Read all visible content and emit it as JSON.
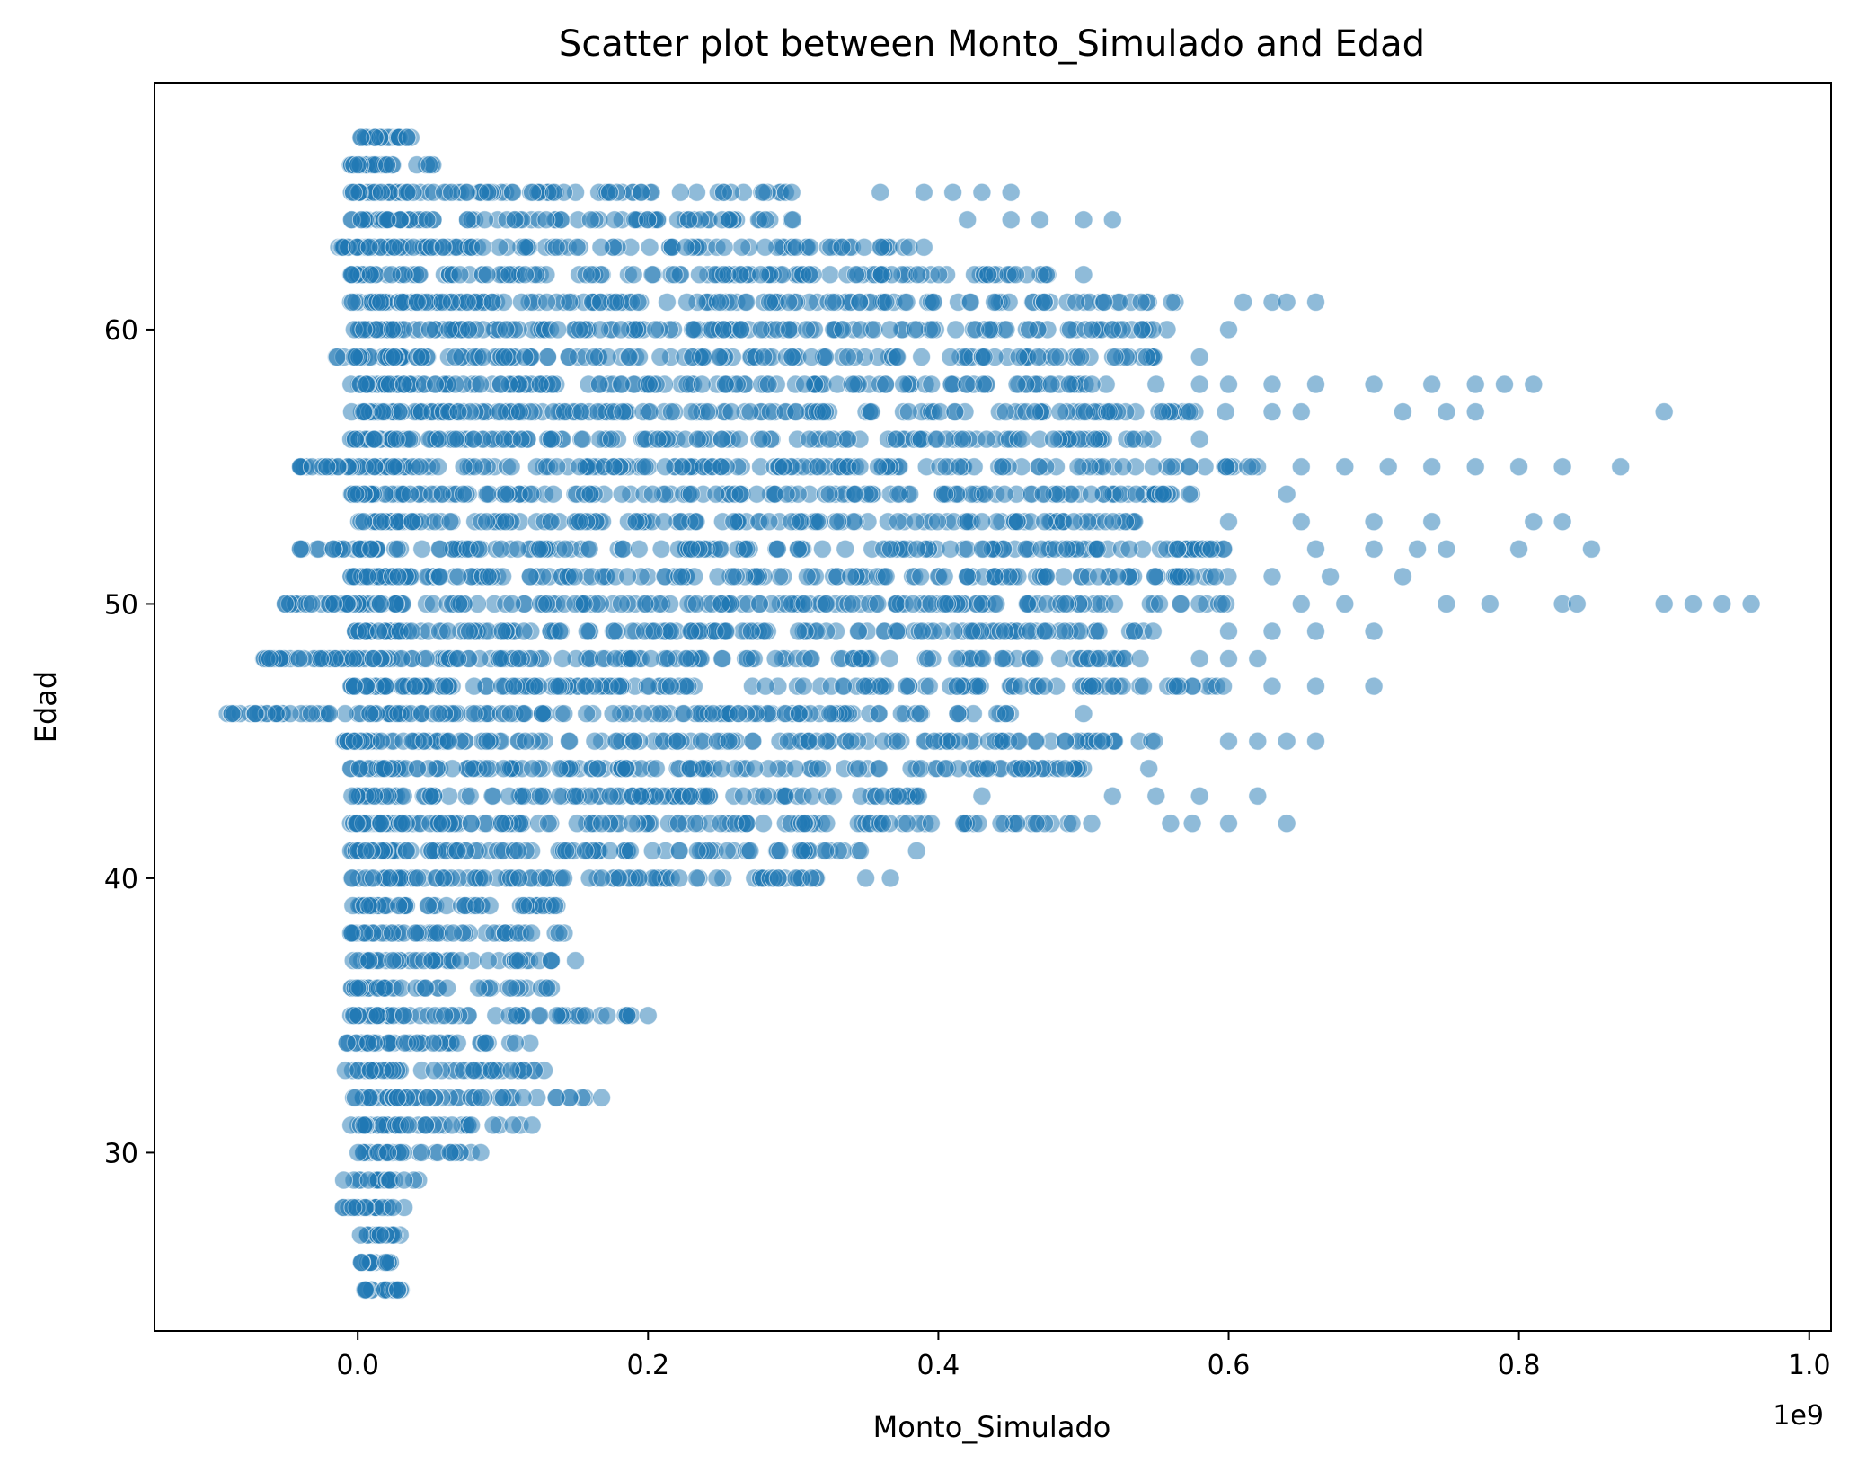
{
  "chart_data": {
    "type": "scatter",
    "title": "Scatter plot between Monto_Simulado and Edad",
    "xlabel": "Monto_Simulado",
    "ylabel": "Edad",
    "x_offset_label": "1e9",
    "xlim": [
      -0.14,
      1.015
    ],
    "ylim": [
      23.5,
      69
    ],
    "x_ticks": [
      0.0,
      0.2,
      0.4,
      0.6,
      0.8,
      1.0
    ],
    "x_tick_labels": [
      "0.0",
      "0.2",
      "0.4",
      "0.6",
      "0.8",
      "1.0"
    ],
    "y_ticks": [
      30,
      40,
      50,
      60
    ],
    "y_tick_labels": [
      "30",
      "40",
      "50",
      "60"
    ],
    "grid": false,
    "legend": "none",
    "marker_color": "#1f77b4",
    "marker_alpha": 0.5,
    "note": "x values in units of 1e9; each row lists observed x range per age with a few outliers",
    "rows": [
      {
        "age": 25,
        "xmin": 0.0,
        "xmax": 0.037,
        "outliers": []
      },
      {
        "age": 26,
        "xmin": 0.0,
        "xmax": 0.025,
        "outliers": []
      },
      {
        "age": 27,
        "xmin": 0.0,
        "xmax": 0.03,
        "outliers": []
      },
      {
        "age": 28,
        "xmin": -0.01,
        "xmax": 0.035,
        "outliers": []
      },
      {
        "age": 29,
        "xmin": -0.01,
        "xmax": 0.045,
        "outliers": []
      },
      {
        "age": 30,
        "xmin": 0.0,
        "xmax": 0.085,
        "outliers": []
      },
      {
        "age": 31,
        "xmin": -0.005,
        "xmax": 0.125,
        "outliers": []
      },
      {
        "age": 32,
        "xmin": -0.005,
        "xmax": 0.16,
        "outliers": [
          0.168
        ]
      },
      {
        "age": 33,
        "xmin": -0.01,
        "xmax": 0.13,
        "outliers": []
      },
      {
        "age": 34,
        "xmin": -0.01,
        "xmax": 0.12,
        "outliers": []
      },
      {
        "age": 35,
        "xmin": -0.005,
        "xmax": 0.19,
        "outliers": [
          0.2
        ]
      },
      {
        "age": 36,
        "xmin": -0.005,
        "xmax": 0.145,
        "outliers": []
      },
      {
        "age": 37,
        "xmin": -0.005,
        "xmax": 0.14,
        "outliers": [
          0.15
        ]
      },
      {
        "age": 38,
        "xmin": -0.005,
        "xmax": 0.15,
        "outliers": []
      },
      {
        "age": 39,
        "xmin": -0.005,
        "xmax": 0.155,
        "outliers": []
      },
      {
        "age": 40,
        "xmin": -0.005,
        "xmax": 0.32,
        "outliers": [
          0.35,
          0.367
        ]
      },
      {
        "age": 41,
        "xmin": -0.005,
        "xmax": 0.36,
        "outliers": [
          0.385
        ]
      },
      {
        "age": 42,
        "xmin": -0.005,
        "xmax": 0.52,
        "outliers": [
          0.56,
          0.575,
          0.6,
          0.64
        ]
      },
      {
        "age": 43,
        "xmin": -0.005,
        "xmax": 0.4,
        "outliers": [
          0.43,
          0.52,
          0.55,
          0.58,
          0.62
        ]
      },
      {
        "age": 44,
        "xmin": -0.005,
        "xmax": 0.52,
        "outliers": [
          0.545
        ]
      },
      {
        "age": 45,
        "xmin": -0.01,
        "xmax": 0.56,
        "outliers": [
          0.6,
          0.62,
          0.64,
          0.66
        ]
      },
      {
        "age": 46,
        "xmin": -0.09,
        "xmax": 0.45,
        "outliers": [
          0.5
        ]
      },
      {
        "age": 47,
        "xmin": -0.005,
        "xmax": 0.6,
        "outliers": [
          0.63,
          0.66,
          0.7
        ]
      },
      {
        "age": 48,
        "xmin": -0.065,
        "xmax": 0.55,
        "outliers": [
          0.58,
          0.6,
          0.62
        ]
      },
      {
        "age": 49,
        "xmin": -0.005,
        "xmax": 0.55,
        "outliers": [
          0.6,
          0.63,
          0.66,
          0.7
        ]
      },
      {
        "age": 50,
        "xmin": -0.05,
        "xmax": 0.6,
        "outliers": [
          0.65,
          0.68,
          0.75,
          0.78,
          0.83,
          0.84,
          0.9,
          0.92,
          0.94,
          0.96
        ]
      },
      {
        "age": 51,
        "xmin": -0.005,
        "xmax": 0.6,
        "outliers": [
          0.63,
          0.67,
          0.72
        ]
      },
      {
        "age": 52,
        "xmin": -0.04,
        "xmax": 0.6,
        "outliers": [
          0.66,
          0.7,
          0.73,
          0.75,
          0.8,
          0.85
        ]
      },
      {
        "age": 53,
        "xmin": -0.005,
        "xmax": 0.55,
        "outliers": [
          0.6,
          0.65,
          0.7,
          0.74,
          0.81,
          0.83
        ]
      },
      {
        "age": 54,
        "xmin": -0.005,
        "xmax": 0.58,
        "outliers": [
          0.64
        ]
      },
      {
        "age": 55,
        "xmin": -0.04,
        "xmax": 0.62,
        "outliers": [
          0.65,
          0.68,
          0.71,
          0.74,
          0.77,
          0.8,
          0.83,
          0.87
        ]
      },
      {
        "age": 56,
        "xmin": -0.005,
        "xmax": 0.55,
        "outliers": [
          0.58
        ]
      },
      {
        "age": 57,
        "xmin": -0.005,
        "xmax": 0.6,
        "outliers": [
          0.63,
          0.65,
          0.72,
          0.75,
          0.77,
          0.9
        ]
      },
      {
        "age": 58,
        "xmin": -0.005,
        "xmax": 0.52,
        "outliers": [
          0.55,
          0.58,
          0.6,
          0.63,
          0.66,
          0.7,
          0.74,
          0.77,
          0.79,
          0.81
        ]
      },
      {
        "age": 59,
        "xmin": -0.015,
        "xmax": 0.55,
        "outliers": [
          0.58
        ]
      },
      {
        "age": 60,
        "xmin": -0.005,
        "xmax": 0.56,
        "outliers": [
          0.6
        ]
      },
      {
        "age": 61,
        "xmin": -0.005,
        "xmax": 0.58,
        "outliers": [
          0.61,
          0.63,
          0.64,
          0.66
        ]
      },
      {
        "age": 62,
        "xmin": -0.005,
        "xmax": 0.48,
        "outliers": [
          0.5
        ]
      },
      {
        "age": 63,
        "xmin": -0.015,
        "xmax": 0.38,
        "outliers": [
          0.39
        ]
      },
      {
        "age": 64,
        "xmin": -0.005,
        "xmax": 0.3,
        "outliers": [
          0.42,
          0.45,
          0.47,
          0.5,
          0.52
        ]
      },
      {
        "age": 65,
        "xmin": -0.005,
        "xmax": 0.3,
        "outliers": [
          0.36,
          0.39,
          0.41,
          0.43,
          0.45
        ]
      },
      {
        "age": 66,
        "xmin": -0.005,
        "xmax": 0.065,
        "outliers": []
      },
      {
        "age": 67,
        "xmin": -0.005,
        "xmax": 0.045,
        "outliers": []
      }
    ]
  }
}
